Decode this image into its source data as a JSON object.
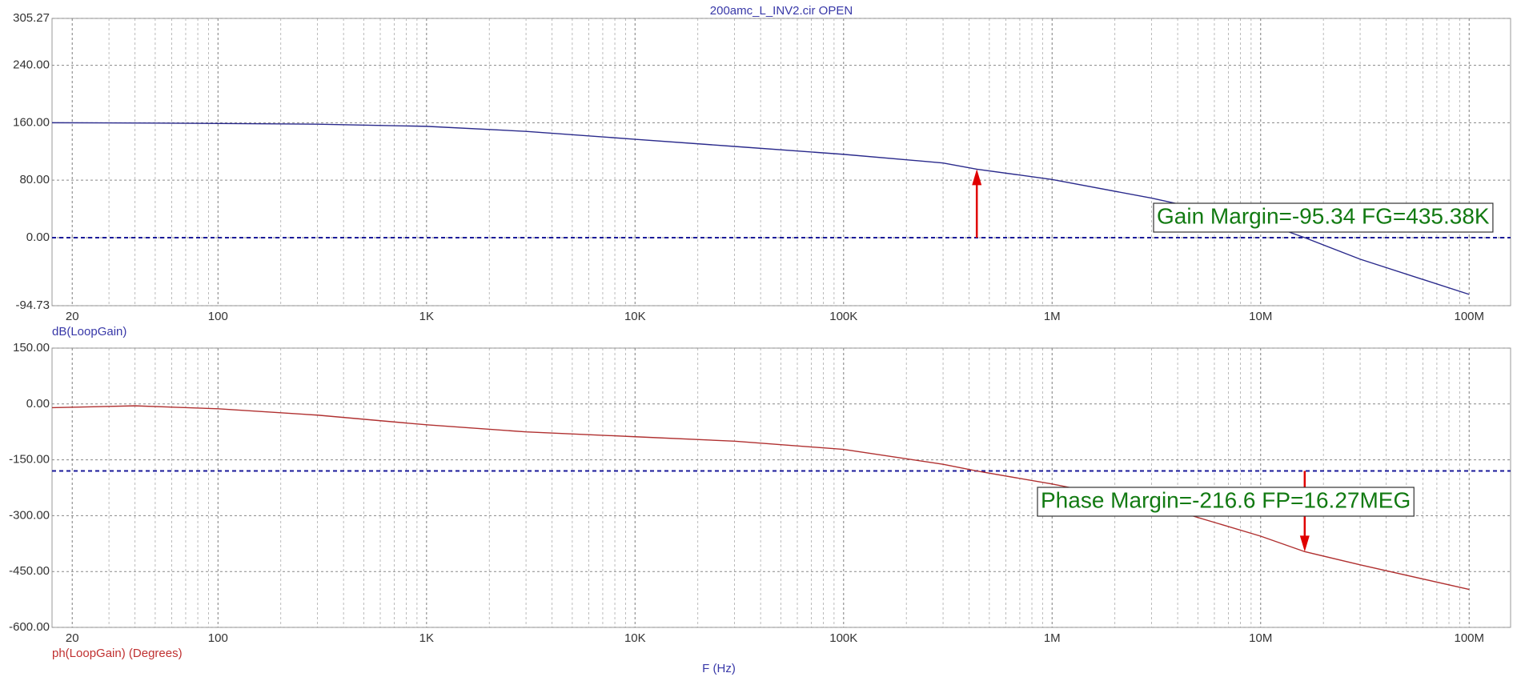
{
  "chart_data": [
    {
      "type": "line",
      "title": "200amc_L_INV2.cir OPEN",
      "ylabel": "dB(LoopGain)",
      "xscale": "log",
      "grid": true,
      "minor_grid": true,
      "xlim": [
        16,
        158000000
      ],
      "ylim": [
        -94.73,
        305.27
      ],
      "xticks": [
        20,
        100,
        {
          "value": 1000,
          "label": "1K"
        },
        {
          "value": 10000,
          "label": "10K"
        },
        {
          "value": 100000,
          "label": "100K"
        },
        {
          "value": 1000000,
          "label": "1M"
        },
        {
          "value": 10000000,
          "label": "10M"
        },
        {
          "value": 100000000,
          "label": "100M"
        }
      ],
      "yticks": [
        -94.73,
        {
          "value": 0,
          "label": "0.00"
        },
        {
          "value": 80,
          "label": "80.00"
        },
        {
          "value": 160,
          "label": "160.00"
        },
        {
          "value": 240,
          "label": "240.00"
        },
        305.27
      ],
      "x": [
        16,
        50,
        100,
        300,
        1000,
        3000,
        10000,
        30000,
        100000,
        300000,
        435380,
        1000000,
        3000000,
        10000000,
        16270000,
        30000000,
        100000000
      ],
      "series": [
        {
          "name": "dB(LoopGain)",
          "color": "#2a2a8c",
          "values": [
            160,
            159.5,
            159,
            158,
            155,
            148,
            137,
            127,
            116,
            104,
            95.34,
            81,
            55,
            22,
            0,
            -30,
            -79
          ]
        }
      ],
      "reference_lines": [
        {
          "value": 0,
          "color": "#1a1a9a"
        }
      ],
      "arrow": {
        "x": 435380,
        "from": 0,
        "to": 95.34,
        "color": "#e00000"
      },
      "annotation": "Gain Margin=-95.34 FG=435.38K"
    },
    {
      "type": "line",
      "ylabel": "ph(LoopGain) (Degrees)",
      "xlabel": "F (Hz)",
      "xscale": "log",
      "grid": true,
      "minor_grid": true,
      "xlim": [
        16,
        158000000
      ],
      "ylim": [
        -600,
        150
      ],
      "xticks": [
        20,
        100,
        {
          "value": 1000,
          "label": "1K"
        },
        {
          "value": 10000,
          "label": "10K"
        },
        {
          "value": 100000,
          "label": "100K"
        },
        {
          "value": 1000000,
          "label": "1M"
        },
        {
          "value": 10000000,
          "label": "10M"
        },
        {
          "value": 100000000,
          "label": "100M"
        }
      ],
      "yticks": [
        {
          "value": -600,
          "label": "-600.00"
        },
        {
          "value": -450,
          "label": "-450.00"
        },
        {
          "value": -300,
          "label": "-300.00"
        },
        {
          "value": -150,
          "label": "-150.00"
        },
        {
          "value": 0,
          "label": "0.00"
        },
        {
          "value": 150,
          "label": "150.00"
        }
      ],
      "x": [
        16,
        40,
        100,
        300,
        1000,
        3000,
        10000,
        30000,
        100000,
        300000,
        435380,
        1000000,
        3000000,
        10000000,
        16270000,
        30000000,
        100000000
      ],
      "series": [
        {
          "name": "ph(LoopGain) (Degrees)",
          "color": "#b03030",
          "values": [
            -10,
            -5,
            -13,
            -30,
            -56,
            -75,
            -88,
            -100,
            -122,
            -162,
            -180,
            -215,
            -268,
            -355,
            -396.6,
            -432,
            -498
          ]
        }
      ],
      "reference_lines": [
        {
          "value": -180,
          "color": "#1a1a9a"
        }
      ],
      "arrow": {
        "x": 16270000,
        "from": -180,
        "to": -396.6,
        "color": "#e00000"
      },
      "annotation": "Phase Margin=-216.6 FP=16.27MEG"
    }
  ]
}
